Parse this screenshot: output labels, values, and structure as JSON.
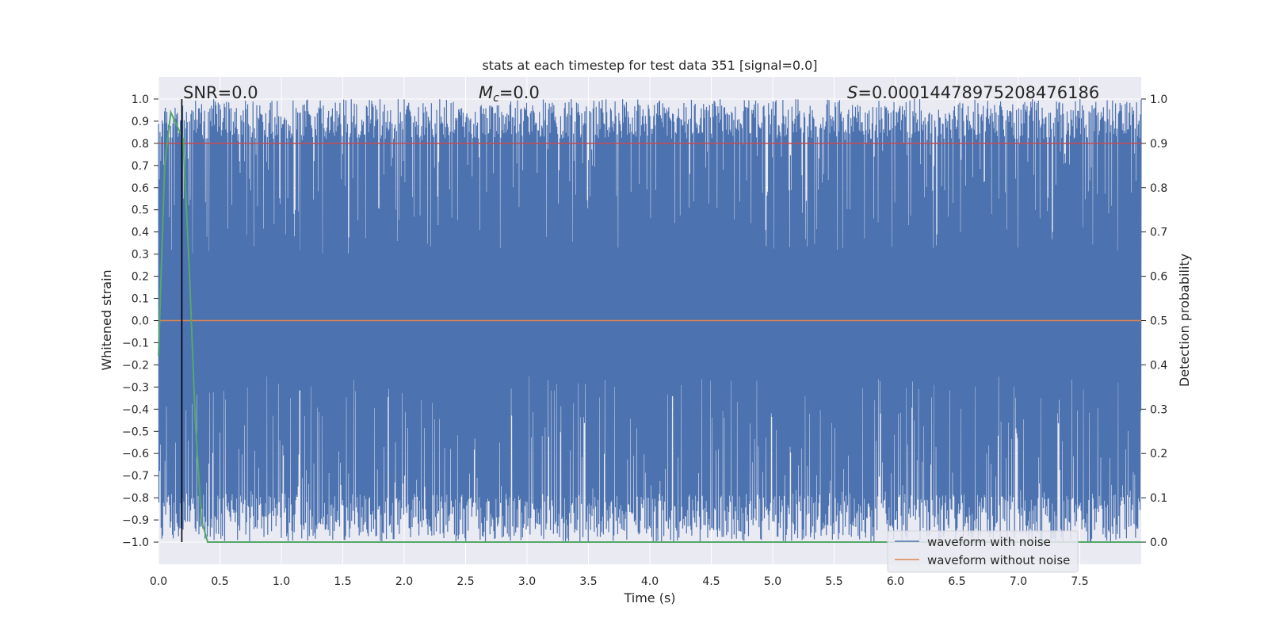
{
  "chart_data": {
    "type": "line",
    "title": "stats at each timestep for test data 351 [signal=0.0]",
    "xlabel": "Time (s)",
    "ylabel": "Whitened strain",
    "y2label": "Detection probability",
    "xlim": [
      0.0,
      8.0
    ],
    "ylim": [
      -1.1,
      1.1
    ],
    "y2lim": [
      -0.05,
      1.05
    ],
    "x_ticks": [
      0.0,
      0.5,
      1.0,
      1.5,
      2.0,
      2.5,
      3.0,
      3.5,
      4.0,
      4.5,
      5.0,
      5.5,
      6.0,
      6.5,
      7.0,
      7.5
    ],
    "x_tick_labels": [
      "0.0",
      "0.5",
      "1.0",
      "1.5",
      "2.0",
      "2.5",
      "3.0",
      "3.5",
      "4.0",
      "4.5",
      "5.0",
      "5.5",
      "6.0",
      "6.5",
      "7.0",
      "7.5"
    ],
    "y_ticks": [
      -1.0,
      -0.9,
      -0.8,
      -0.7,
      -0.6,
      -0.5,
      -0.4,
      -0.3,
      -0.2,
      -0.1,
      0.0,
      0.1,
      0.2,
      0.3,
      0.4,
      0.5,
      0.6,
      0.7,
      0.8,
      0.9,
      1.0
    ],
    "y_tick_labels": [
      "−1.0",
      "−0.9",
      "−0.8",
      "−0.7",
      "−0.6",
      "−0.5",
      "−0.4",
      "−0.3",
      "−0.2",
      "−0.1",
      "0.0",
      "0.1",
      "0.2",
      "0.3",
      "0.4",
      "0.5",
      "0.6",
      "0.7",
      "0.8",
      "0.9",
      "1.0"
    ],
    "y2_ticks": [
      0.0,
      0.1,
      0.2,
      0.3,
      0.4,
      0.5,
      0.6,
      0.7,
      0.8,
      0.9,
      1.0
    ],
    "y2_tick_labels": [
      "0.0",
      "0.1",
      "0.2",
      "0.3",
      "0.4",
      "0.5",
      "0.6",
      "0.7",
      "0.8",
      "0.9",
      "1.0"
    ],
    "annotations": {
      "snr": "SNR=0.0",
      "mc_symbol": "M",
      "mc_subscript": "c",
      "mc_value": "=0.0",
      "s_symbol": "S",
      "s_value": "=0.00014478975208476186"
    },
    "series": [
      {
        "name": "waveform with noise",
        "axis": "left",
        "color": "#4c72b0",
        "description_values": "dense whitened noise oscillating approximately between -1.0 and 1.0 across 0-8 s",
        "sample_rate_hz": 2048,
        "range": [
          -1.0,
          1.0
        ]
      },
      {
        "name": "waveform without noise",
        "axis": "left",
        "color": "#dd8452",
        "x": [
          0.0,
          8.0
        ],
        "y": [
          0.0,
          0.0
        ]
      },
      {
        "axis": "right",
        "color": "#55a868",
        "x": [
          0.0,
          0.05,
          0.1,
          0.15,
          0.2,
          0.25,
          0.3,
          0.35,
          0.4,
          1.0,
          2.0,
          3.0,
          4.0,
          5.0,
          6.0,
          7.0,
          8.0
        ],
        "y": [
          0.42,
          0.85,
          0.97,
          0.94,
          0.91,
          0.62,
          0.27,
          0.05,
          0.0,
          0.0,
          0.0,
          0.0,
          0.0,
          0.0,
          0.0,
          0.0,
          0.0
        ]
      }
    ],
    "threshold": {
      "axis": "right",
      "value": 0.9,
      "color": "#c44e52"
    },
    "marker_line": {
      "x": 0.19,
      "color": "#000000"
    },
    "legend": {
      "placement": "lower-right",
      "entries": [
        {
          "label": "waveform with noise",
          "color": "#4c72b0"
        },
        {
          "label": "waveform without noise",
          "color": "#dd8452"
        }
      ]
    },
    "grid": true,
    "style": {
      "axes_background": "#eaeaf2",
      "grid_color": "#ffffff"
    }
  }
}
